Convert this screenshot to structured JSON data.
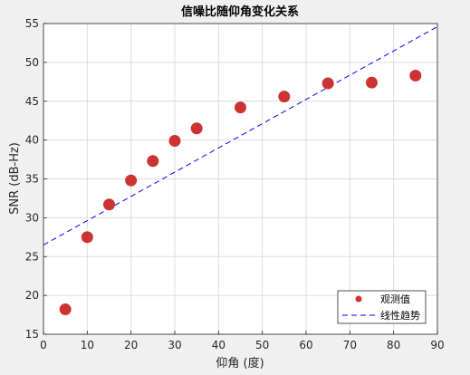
{
  "chart_data": {
    "type": "scatter",
    "title": "信噪比随仰角变化关系",
    "xlabel": "仰角 (度)",
    "ylabel": "SNR (dB-Hz)",
    "xlim": [
      0,
      90
    ],
    "ylim": [
      15,
      55
    ],
    "xticks": [
      0,
      10,
      20,
      30,
      40,
      50,
      60,
      70,
      80,
      90
    ],
    "yticks": [
      15,
      20,
      25,
      30,
      35,
      40,
      45,
      50,
      55
    ],
    "grid": true,
    "legend_position": "bottom-right",
    "series": [
      {
        "name": "观测值",
        "kind": "scatter",
        "color": "#cc3333",
        "x": [
          5,
          10,
          15,
          20,
          25,
          30,
          35,
          45,
          55,
          65,
          75,
          85
        ],
        "y": [
          18.2,
          27.5,
          31.7,
          34.8,
          37.3,
          39.9,
          41.5,
          44.2,
          45.6,
          47.3,
          47.4,
          48.3
        ]
      },
      {
        "name": "线性趋势",
        "kind": "line",
        "style": "dashed",
        "color": "#0000ff",
        "x": [
          0,
          90
        ],
        "y": [
          26.5,
          54.6
        ]
      }
    ]
  }
}
